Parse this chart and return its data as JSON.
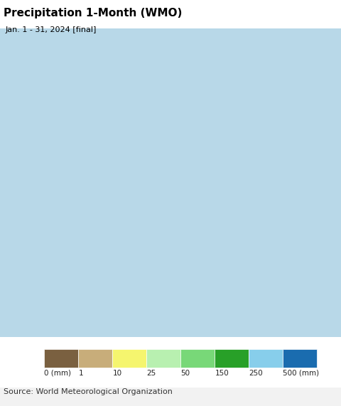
{
  "title": "Precipitation 1-Month (WMO)",
  "subtitle": "Jan. 1 - 31, 2024 [final]",
  "source": "Source: World Meteorological Organization",
  "colorbar_values": [
    0,
    1,
    10,
    25,
    50,
    150,
    250,
    500
  ],
  "colorbar_labels": [
    "0 (mm)",
    "1",
    "10",
    "25",
    "50",
    "150",
    "250",
    "500 (mm)"
  ],
  "colorbar_colors": [
    "#7a6040",
    "#c8ad7a",
    "#f5f56e",
    "#b8f0b0",
    "#78d878",
    "#28a028",
    "#87ceeb",
    "#1a6caf"
  ],
  "title_fontsize": 11,
  "subtitle_fontsize": 8,
  "source_fontsize": 8,
  "fig_bg": "#ffffff",
  "ocean_color": "#b8d8e8",
  "outside_color": "#e0d8d0",
  "map_extent": [
    55,
    105,
    5,
    45
  ],
  "cb_label_fontsize": 7.5
}
